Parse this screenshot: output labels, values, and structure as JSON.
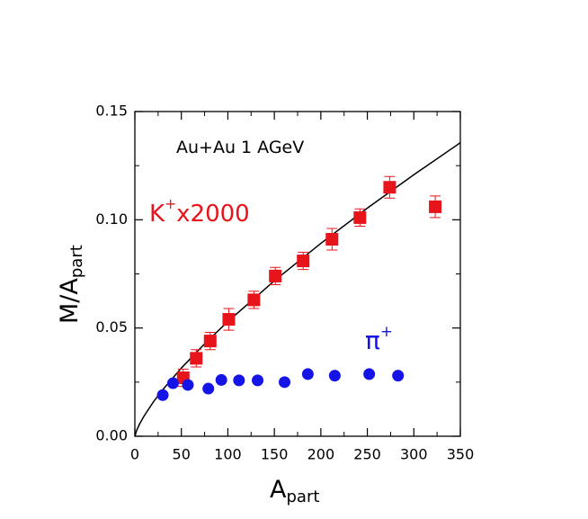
{
  "chart_data": {
    "type": "scatter",
    "x_label": {
      "base": "A",
      "sub": "part"
    },
    "y_label": {
      "base": "M/A",
      "sub": "part"
    },
    "xlim": [
      0,
      350
    ],
    "ylim": [
      0,
      0.15
    ],
    "xticks": [
      0,
      50,
      100,
      150,
      200,
      250,
      300,
      350
    ],
    "yticks": [
      {
        "value": 0,
        "label": "0.00"
      },
      {
        "value": 0.05,
        "label": "0.05"
      },
      {
        "value": 0.1,
        "label": "0.10"
      },
      {
        "value": 0.15,
        "label": "0.15"
      }
    ],
    "xminorticks": [
      25,
      75,
      125,
      175,
      225,
      275,
      325
    ],
    "yminorticks": [
      0.025,
      0.075,
      0.125
    ],
    "annotations": [
      {
        "text": "Au+Au  1  AGeV",
        "color": "#000000"
      },
      {
        "text": "K",
        "sup": "+",
        "suffix": "x2000",
        "color": "#e8141c"
      },
      {
        "text": "π",
        "sup": "+",
        "color": "#1414e6"
      }
    ],
    "series": [
      {
        "marker": "square",
        "color": "#e8141c",
        "x": [
          52,
          66,
          81,
          101,
          128,
          151,
          181,
          212,
          242,
          274,
          323
        ],
        "values": [
          0.027,
          0.036,
          0.044,
          0.054,
          0.063,
          0.074,
          0.081,
          0.091,
          0.101,
          0.115,
          0.106
        ],
        "errors": [
          0.004,
          0.004,
          0.004,
          0.005,
          0.004,
          0.004,
          0.004,
          0.005,
          0.004,
          0.005,
          0.005
        ]
      },
      {
        "marker": "circle",
        "color": "#1414e6",
        "x": [
          30,
          41,
          57,
          79,
          93,
          112,
          132,
          161,
          186,
          215,
          252,
          283
        ],
        "values": [
          0.019,
          0.0245,
          0.0237,
          0.022,
          0.026,
          0.0258,
          0.0258,
          0.025,
          0.0287,
          0.028,
          0.0287,
          0.028
        ]
      }
    ],
    "curve": {
      "color": "#000000",
      "x": [
        0,
        2,
        5,
        10,
        20,
        30,
        50,
        75,
        100,
        150,
        200,
        250,
        300,
        350
      ],
      "values": [
        0,
        0.0028,
        0.0056,
        0.0094,
        0.0159,
        0.0215,
        0.0315,
        0.0427,
        0.053,
        0.0718,
        0.0891,
        0.1054,
        0.1208,
        0.1356
      ]
    }
  }
}
